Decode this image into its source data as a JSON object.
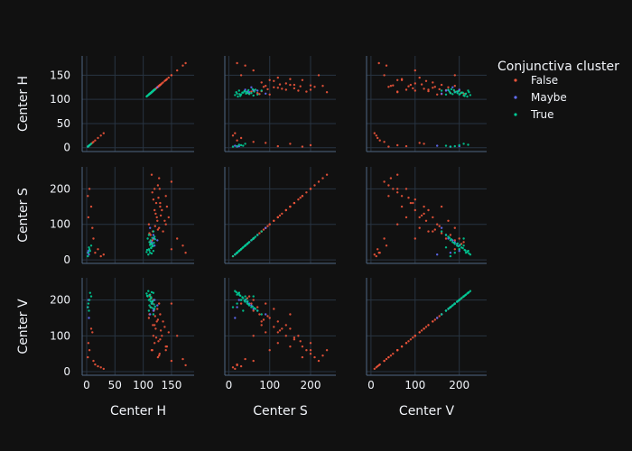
{
  "chart_data": {
    "type": "scatter",
    "subtype": "scatter-matrix",
    "dimensions": [
      "Center H",
      "Center S",
      "Center V"
    ],
    "legend": {
      "title": "Conjunctiva cluster",
      "position": "top-right",
      "entries": [
        {
          "name": "False",
          "color": "#ef553b"
        },
        {
          "name": "Maybe",
          "color": "#636efa"
        },
        {
          "name": "True",
          "color": "#00cc96"
        }
      ]
    },
    "grid": true,
    "background": "#111111",
    "axis_ranges": {
      "Center H": [
        -8,
        190
      ],
      "Center S": [
        -10,
        262
      ],
      "Center V": [
        -10,
        262
      ]
    },
    "ticks": {
      "Center H": {
        "values": [
          0,
          50,
          100,
          150
        ],
        "labels": [
          "0",
          "50",
          "100",
          "150"
        ]
      },
      "Center S": {
        "values": [
          0,
          100,
          200
        ],
        "labels": [
          "0",
          "100",
          "200"
        ]
      },
      "Center V": {
        "values": [
          0,
          100,
          200
        ],
        "labels": [
          "0",
          "100",
          "200"
        ]
      }
    },
    "axis_titles": {
      "Center H": "Center H",
      "Center S": "Center S",
      "Center V": "Center V"
    },
    "series": [
      {
        "name": "False",
        "points": [
          [
            118,
            60,
            200
          ],
          [
            125,
            110,
            175
          ],
          [
            120,
            200,
            80
          ],
          [
            115,
            240,
            60
          ],
          [
            130,
            150,
            160
          ],
          [
            128,
            90,
            190
          ],
          [
            112,
            50,
            210
          ],
          [
            140,
            180,
            70
          ],
          [
            150,
            220,
            30
          ],
          [
            122,
            130,
            120
          ],
          [
            110,
            100,
            150
          ],
          [
            135,
            80,
            140
          ],
          [
            118,
            170,
            100
          ],
          [
            126,
            210,
            40
          ],
          [
            145,
            120,
            110
          ],
          [
            113,
            70,
            180
          ],
          [
            130,
            160,
            90
          ],
          [
            120,
            140,
            130
          ],
          [
            116,
            190,
            60
          ],
          [
            140,
            100,
            60
          ],
          [
            8,
            150,
            120
          ],
          [
            12,
            60,
            30
          ],
          [
            20,
            30,
            15
          ],
          [
            25,
            10,
            12
          ],
          [
            5,
            200,
            60
          ],
          [
            3,
            120,
            80
          ],
          [
            15,
            20,
            20
          ],
          [
            10,
            90,
            110
          ],
          [
            2,
            180,
            40
          ],
          [
            30,
            15,
            8
          ],
          [
            170,
            40,
            35
          ],
          [
            175,
            20,
            18
          ],
          [
            160,
            60,
            100
          ],
          [
            150,
            30,
            190
          ],
          [
            128,
            230,
            45
          ],
          [
            124,
            120,
            140
          ],
          [
            119,
            60,
            170
          ],
          [
            117,
            80,
            130
          ],
          [
            133,
            140,
            100
          ],
          [
            127,
            175,
            85
          ],
          [
            121,
            95,
            155
          ],
          [
            114,
            45,
            205
          ],
          [
            138,
            110,
            125
          ],
          [
            142,
            150,
            70
          ],
          [
            111,
            75,
            160
          ],
          [
            129,
            200,
            50
          ],
          [
            123,
            160,
            95
          ],
          [
            116,
            55,
            190
          ],
          [
            131,
            125,
            115
          ],
          [
            126,
            85,
            145
          ]
        ]
      },
      {
        "name": "Maybe",
        "points": [
          [
            115,
            50,
            190
          ],
          [
            118,
            70,
            170
          ],
          [
            120,
            40,
            200
          ],
          [
            112,
            90,
            160
          ],
          [
            125,
            55,
            185
          ],
          [
            2,
            20,
            180
          ],
          [
            4,
            15,
            150
          ],
          [
            3,
            25,
            200
          ],
          [
            119,
            60,
            175
          ],
          [
            116,
            45,
            195
          ]
        ]
      },
      {
        "name": "True",
        "points": [
          [
            110,
            30,
            200
          ],
          [
            112,
            20,
            215
          ],
          [
            115,
            45,
            190
          ],
          [
            108,
            60,
            210
          ],
          [
            118,
            25,
            220
          ],
          [
            114,
            35,
            205
          ],
          [
            111,
            50,
            185
          ],
          [
            116,
            40,
            195
          ],
          [
            109,
            15,
            225
          ],
          [
            113,
            55,
            180
          ],
          [
            120,
            65,
            175
          ],
          [
            107,
            28,
            212
          ],
          [
            117,
            38,
            198
          ],
          [
            119,
            48,
            188
          ],
          [
            106,
            22,
            218
          ],
          [
            121,
            58,
            182
          ],
          [
            110,
            70,
            170
          ],
          [
            115,
            18,
            222
          ],
          [
            112,
            42,
            202
          ],
          [
            114,
            33,
            208
          ],
          [
            5,
            30,
            200
          ],
          [
            3,
            20,
            190
          ],
          [
            8,
            40,
            210
          ],
          [
            2,
            10,
            180
          ],
          [
            6,
            25,
            220
          ],
          [
            4,
            35,
            170
          ],
          [
            118,
            80,
            160
          ],
          [
            111,
            26,
            214
          ],
          [
            113,
            46,
            196
          ],
          [
            116,
            62,
            178
          ]
        ]
      }
    ]
  }
}
